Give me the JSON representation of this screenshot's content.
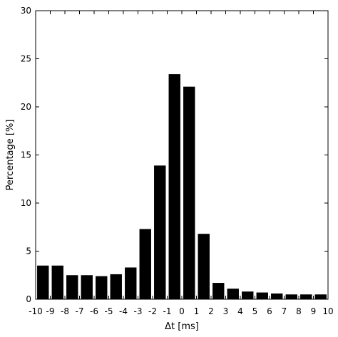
{
  "chart_data": {
    "type": "bar",
    "title": "",
    "xlabel": "Δt [ms]",
    "ylabel": "Percentage [%]",
    "x": [
      -10,
      -9,
      -8,
      -7,
      -6,
      -5,
      -4,
      -3,
      -2,
      -1,
      0,
      1,
      2,
      3,
      4,
      5,
      6,
      7,
      8,
      9
    ],
    "values": [
      3.5,
      3.5,
      2.5,
      2.5,
      2.4,
      2.6,
      3.3,
      7.3,
      13.9,
      23.4,
      22.1,
      6.8,
      1.7,
      1.1,
      0.8,
      0.7,
      0.6,
      0.5,
      0.5,
      0.5
    ],
    "xlim": [
      -10,
      10
    ],
    "ylim": [
      0,
      30
    ],
    "xticks": [
      "-10",
      "-9",
      "-8",
      "-7",
      "-6",
      "-5",
      "-4",
      "-3",
      "-2",
      "-1",
      "0",
      "1",
      "2",
      "3",
      "4",
      "5",
      "6",
      "7",
      "8",
      "9",
      "10"
    ],
    "yticks": [
      "0",
      "5",
      "10",
      "15",
      "20",
      "25",
      "30"
    ],
    "bar_color": "#000000",
    "grid": false
  }
}
